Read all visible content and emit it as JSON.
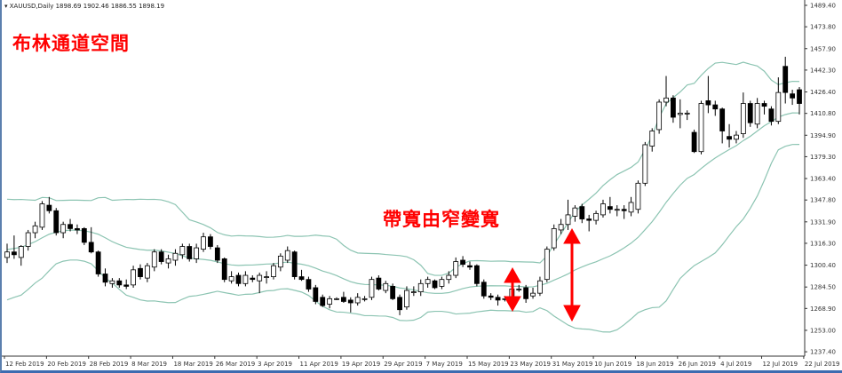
{
  "header": {
    "symbol_label": "▾ XAUUSD,Daily  1898.69 1902.46 1886.55 1898.19"
  },
  "annotations": {
    "title": "布林通道空間",
    "note": "帶寬由窄變寬"
  },
  "colors": {
    "band": "#8cc4b2",
    "candle_up": "#ffffff",
    "candle_down": "#000000",
    "outline": "#000000",
    "annotation": "#ff0000",
    "frame": "#3d6bb0"
  },
  "chart_data": {
    "type": "candlestick",
    "indicator": "Bollinger Bands",
    "band_period": 20,
    "band_deviation": 2,
    "ylim": [
      1233,
      1492
    ],
    "y_ticks": [
      "1489.40",
      "1473.80",
      "1457.90",
      "1442.30",
      "1426.40",
      "1410.80",
      "1394.90",
      "1379.30",
      "1363.40",
      "1347.80",
      "1331.90",
      "1316.30",
      "1300.40",
      "1284.50",
      "1268.90",
      "1253.00",
      "1237.40"
    ],
    "x_ticks": [
      "12 Feb 2019",
      "20 Feb 2019",
      "28 Feb 2019",
      "8 Mar 2019",
      "18 Mar 2019",
      "26 Mar 2019",
      "3 Apr 2019",
      "11 Apr 2019",
      "19 Apr 2019",
      "29 Apr 2019",
      "7 May 2019",
      "15 May 2019",
      "23 May 2019",
      "31 May 2019",
      "10 Jun 2019",
      "18 Jun 2019",
      "26 Jun 2019",
      "4 Jul 2019",
      "12 Jul 2019",
      "22 Jul 2019"
    ],
    "x_tick_every_bars": 6,
    "ohlc": [
      [
        1306,
        1316,
        1302,
        1310
      ],
      [
        1310,
        1322,
        1305,
        1308
      ],
      [
        1306,
        1315,
        1300,
        1314
      ],
      [
        1314,
        1326,
        1311,
        1324
      ],
      [
        1324,
        1332,
        1320,
        1329
      ],
      [
        1328,
        1347,
        1326,
        1345
      ],
      [
        1344,
        1350,
        1338,
        1340
      ],
      [
        1340,
        1342,
        1322,
        1324
      ],
      [
        1324,
        1332,
        1320,
        1330
      ],
      [
        1330,
        1334,
        1325,
        1327
      ],
      [
        1327,
        1330,
        1323,
        1326
      ],
      [
        1327,
        1328,
        1315,
        1317
      ],
      [
        1317,
        1328,
        1309,
        1310
      ],
      [
        1310,
        1311,
        1292,
        1294
      ],
      [
        1294,
        1298,
        1285,
        1288
      ],
      [
        1287,
        1291,
        1284,
        1289
      ],
      [
        1289,
        1291,
        1284,
        1286
      ],
      [
        1286,
        1290,
        1283,
        1285
      ],
      [
        1286,
        1300,
        1284,
        1297
      ],
      [
        1298,
        1301,
        1290,
        1292
      ],
      [
        1291,
        1302,
        1288,
        1300
      ],
      [
        1299,
        1312,
        1296,
        1310
      ],
      [
        1310,
        1312,
        1301,
        1303
      ],
      [
        1302,
        1308,
        1298,
        1305
      ],
      [
        1304,
        1312,
        1300,
        1309
      ],
      [
        1308,
        1316,
        1305,
        1314
      ],
      [
        1314,
        1316,
        1303,
        1305
      ],
      [
        1305,
        1316,
        1302,
        1313
      ],
      [
        1312,
        1324,
        1310,
        1321
      ],
      [
        1321,
        1323,
        1312,
        1314
      ],
      [
        1313,
        1315,
        1302,
        1304
      ],
      [
        1305,
        1306,
        1288,
        1290
      ],
      [
        1289,
        1296,
        1287,
        1292
      ],
      [
        1293,
        1295,
        1285,
        1287
      ],
      [
        1287,
        1296,
        1285,
        1293
      ],
      [
        1291,
        1293,
        1288,
        1290
      ],
      [
        1289,
        1295,
        1280,
        1293
      ],
      [
        1292,
        1296,
        1287,
        1292
      ],
      [
        1292,
        1302,
        1290,
        1300
      ],
      [
        1299,
        1309,
        1296,
        1307
      ],
      [
        1304,
        1314,
        1302,
        1311
      ],
      [
        1310,
        1311,
        1290,
        1292
      ],
      [
        1292,
        1297,
        1289,
        1290
      ],
      [
        1290,
        1292,
        1281,
        1283
      ],
      [
        1284,
        1286,
        1272,
        1274
      ],
      [
        1277,
        1279,
        1270,
        1271
      ],
      [
        1272,
        1278,
        1269,
        1276
      ],
      [
        1276,
        1277,
        1275,
        1276
      ],
      [
        1277,
        1281,
        1273,
        1274
      ],
      [
        1275,
        1277,
        1266,
        1273
      ],
      [
        1273,
        1280,
        1271,
        1277
      ],
      [
        1276,
        1278,
        1274,
        1276
      ],
      [
        1277,
        1292,
        1275,
        1290
      ],
      [
        1291,
        1293,
        1282,
        1283
      ],
      [
        1282,
        1289,
        1280,
        1287
      ],
      [
        1285,
        1287,
        1275,
        1276
      ],
      [
        1277,
        1279,
        1264,
        1268
      ],
      [
        1270,
        1285,
        1268,
        1282
      ],
      [
        1281,
        1285,
        1278,
        1281
      ],
      [
        1281,
        1290,
        1278,
        1287
      ],
      [
        1287,
        1292,
        1284,
        1290
      ],
      [
        1289,
        1290,
        1283,
        1284
      ],
      [
        1285,
        1292,
        1283,
        1290
      ],
      [
        1290,
        1296,
        1287,
        1293
      ],
      [
        1293,
        1306,
        1291,
        1303
      ],
      [
        1304,
        1307,
        1299,
        1301
      ],
      [
        1300,
        1303,
        1297,
        1299
      ],
      [
        1300,
        1301,
        1285,
        1287
      ],
      [
        1288,
        1290,
        1276,
        1278
      ],
      [
        1278,
        1280,
        1275,
        1277
      ],
      [
        1277,
        1279,
        1271,
        1275
      ],
      [
        1276,
        1278,
        1274,
        1276
      ],
      [
        1274,
        1285,
        1272,
        1283
      ],
      [
        1283,
        1286,
        1281,
        1283
      ],
      [
        1284,
        1286,
        1273,
        1276
      ],
      [
        1278,
        1284,
        1276,
        1280
      ],
      [
        1280,
        1292,
        1278,
        1289
      ],
      [
        1290,
        1314,
        1288,
        1312
      ],
      [
        1313,
        1330,
        1311,
        1327
      ],
      [
        1326,
        1334,
        1323,
        1330
      ],
      [
        1330,
        1348,
        1326,
        1337
      ],
      [
        1336,
        1344,
        1332,
        1342
      ],
      [
        1343,
        1345,
        1331,
        1334
      ],
      [
        1334,
        1337,
        1325,
        1333
      ],
      [
        1333,
        1340,
        1330,
        1338
      ],
      [
        1337,
        1348,
        1335,
        1345
      ],
      [
        1343,
        1350,
        1338,
        1341
      ],
      [
        1341,
        1344,
        1336,
        1341
      ],
      [
        1341,
        1344,
        1334,
        1340
      ],
      [
        1339,
        1350,
        1336,
        1346
      ],
      [
        1341,
        1362,
        1338,
        1360
      ],
      [
        1360,
        1390,
        1358,
        1388
      ],
      [
        1387,
        1400,
        1383,
        1398
      ],
      [
        1399,
        1421,
        1396,
        1419
      ],
      [
        1419,
        1438,
        1416,
        1422
      ],
      [
        1422,
        1424,
        1404,
        1408
      ],
      [
        1410,
        1421,
        1400,
        1411
      ],
      [
        1411,
        1413,
        1406,
        1411
      ],
      [
        1397,
        1399,
        1382,
        1383
      ],
      [
        1383,
        1420,
        1381,
        1418
      ],
      [
        1420,
        1438,
        1411,
        1417
      ],
      [
        1417,
        1420,
        1409,
        1414
      ],
      [
        1414,
        1415,
        1389,
        1398
      ],
      [
        1394,
        1403,
        1386,
        1392
      ],
      [
        1392,
        1398,
        1389,
        1395
      ],
      [
        1396,
        1426,
        1393,
        1418
      ],
      [
        1418,
        1420,
        1401,
        1404
      ],
      [
        1403,
        1422,
        1400,
        1418
      ],
      [
        1418,
        1420,
        1410,
        1416
      ],
      [
        1414,
        1416,
        1402,
        1405
      ],
      [
        1405,
        1437,
        1403,
        1426
      ],
      [
        1445,
        1452,
        1418,
        1426
      ],
      [
        1425,
        1428,
        1417,
        1422
      ],
      [
        1428,
        1430,
        1410,
        1418
      ]
    ]
  }
}
